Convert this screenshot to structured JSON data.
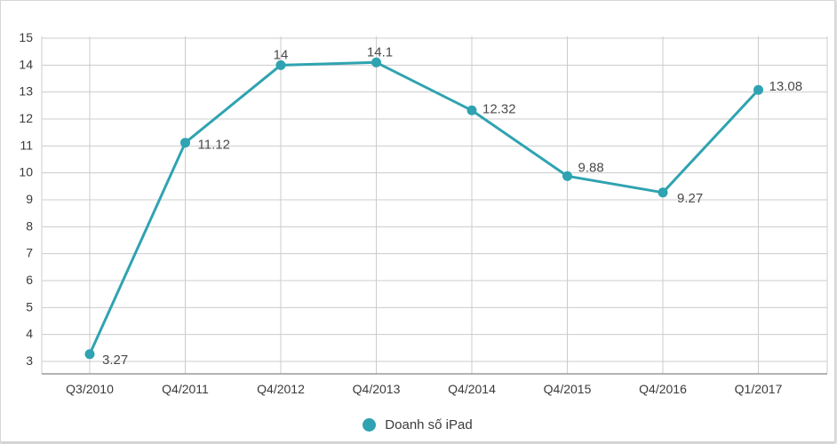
{
  "chart_data": {
    "type": "line",
    "title": "",
    "categories": [
      "Q3/2010",
      "Q4/2011",
      "Q4/2012",
      "Q4/2013",
      "Q4/2014",
      "Q4/2015",
      "Q4/2016",
      "Q1/2017"
    ],
    "series": [
      {
        "name": "Doanh số iPad",
        "values": [
          3.27,
          11.12,
          14,
          14.1,
          12.32,
          9.88,
          9.27,
          13.08
        ],
        "data_labels": [
          "3.27",
          "11.12",
          "14",
          "14.1",
          "12.32",
          "9.88",
          "9.27",
          "13.08"
        ]
      }
    ],
    "xlabel": "",
    "ylabel": "",
    "ylim": [
      3,
      15
    ],
    "yticks": [
      3,
      4,
      5,
      6,
      7,
      8,
      9,
      10,
      11,
      12,
      13,
      14,
      15
    ],
    "grid": true,
    "legend_position": "bottom"
  },
  "colors": {
    "line": "#2fa3b1",
    "point": "#2fa3b1",
    "grid": "#cccccc",
    "axis": "#9a9a9a",
    "tick_text": "#3a3a3a",
    "data_label_text": "#4a4a4a"
  },
  "legend": {
    "label": "Doanh số iPad"
  }
}
